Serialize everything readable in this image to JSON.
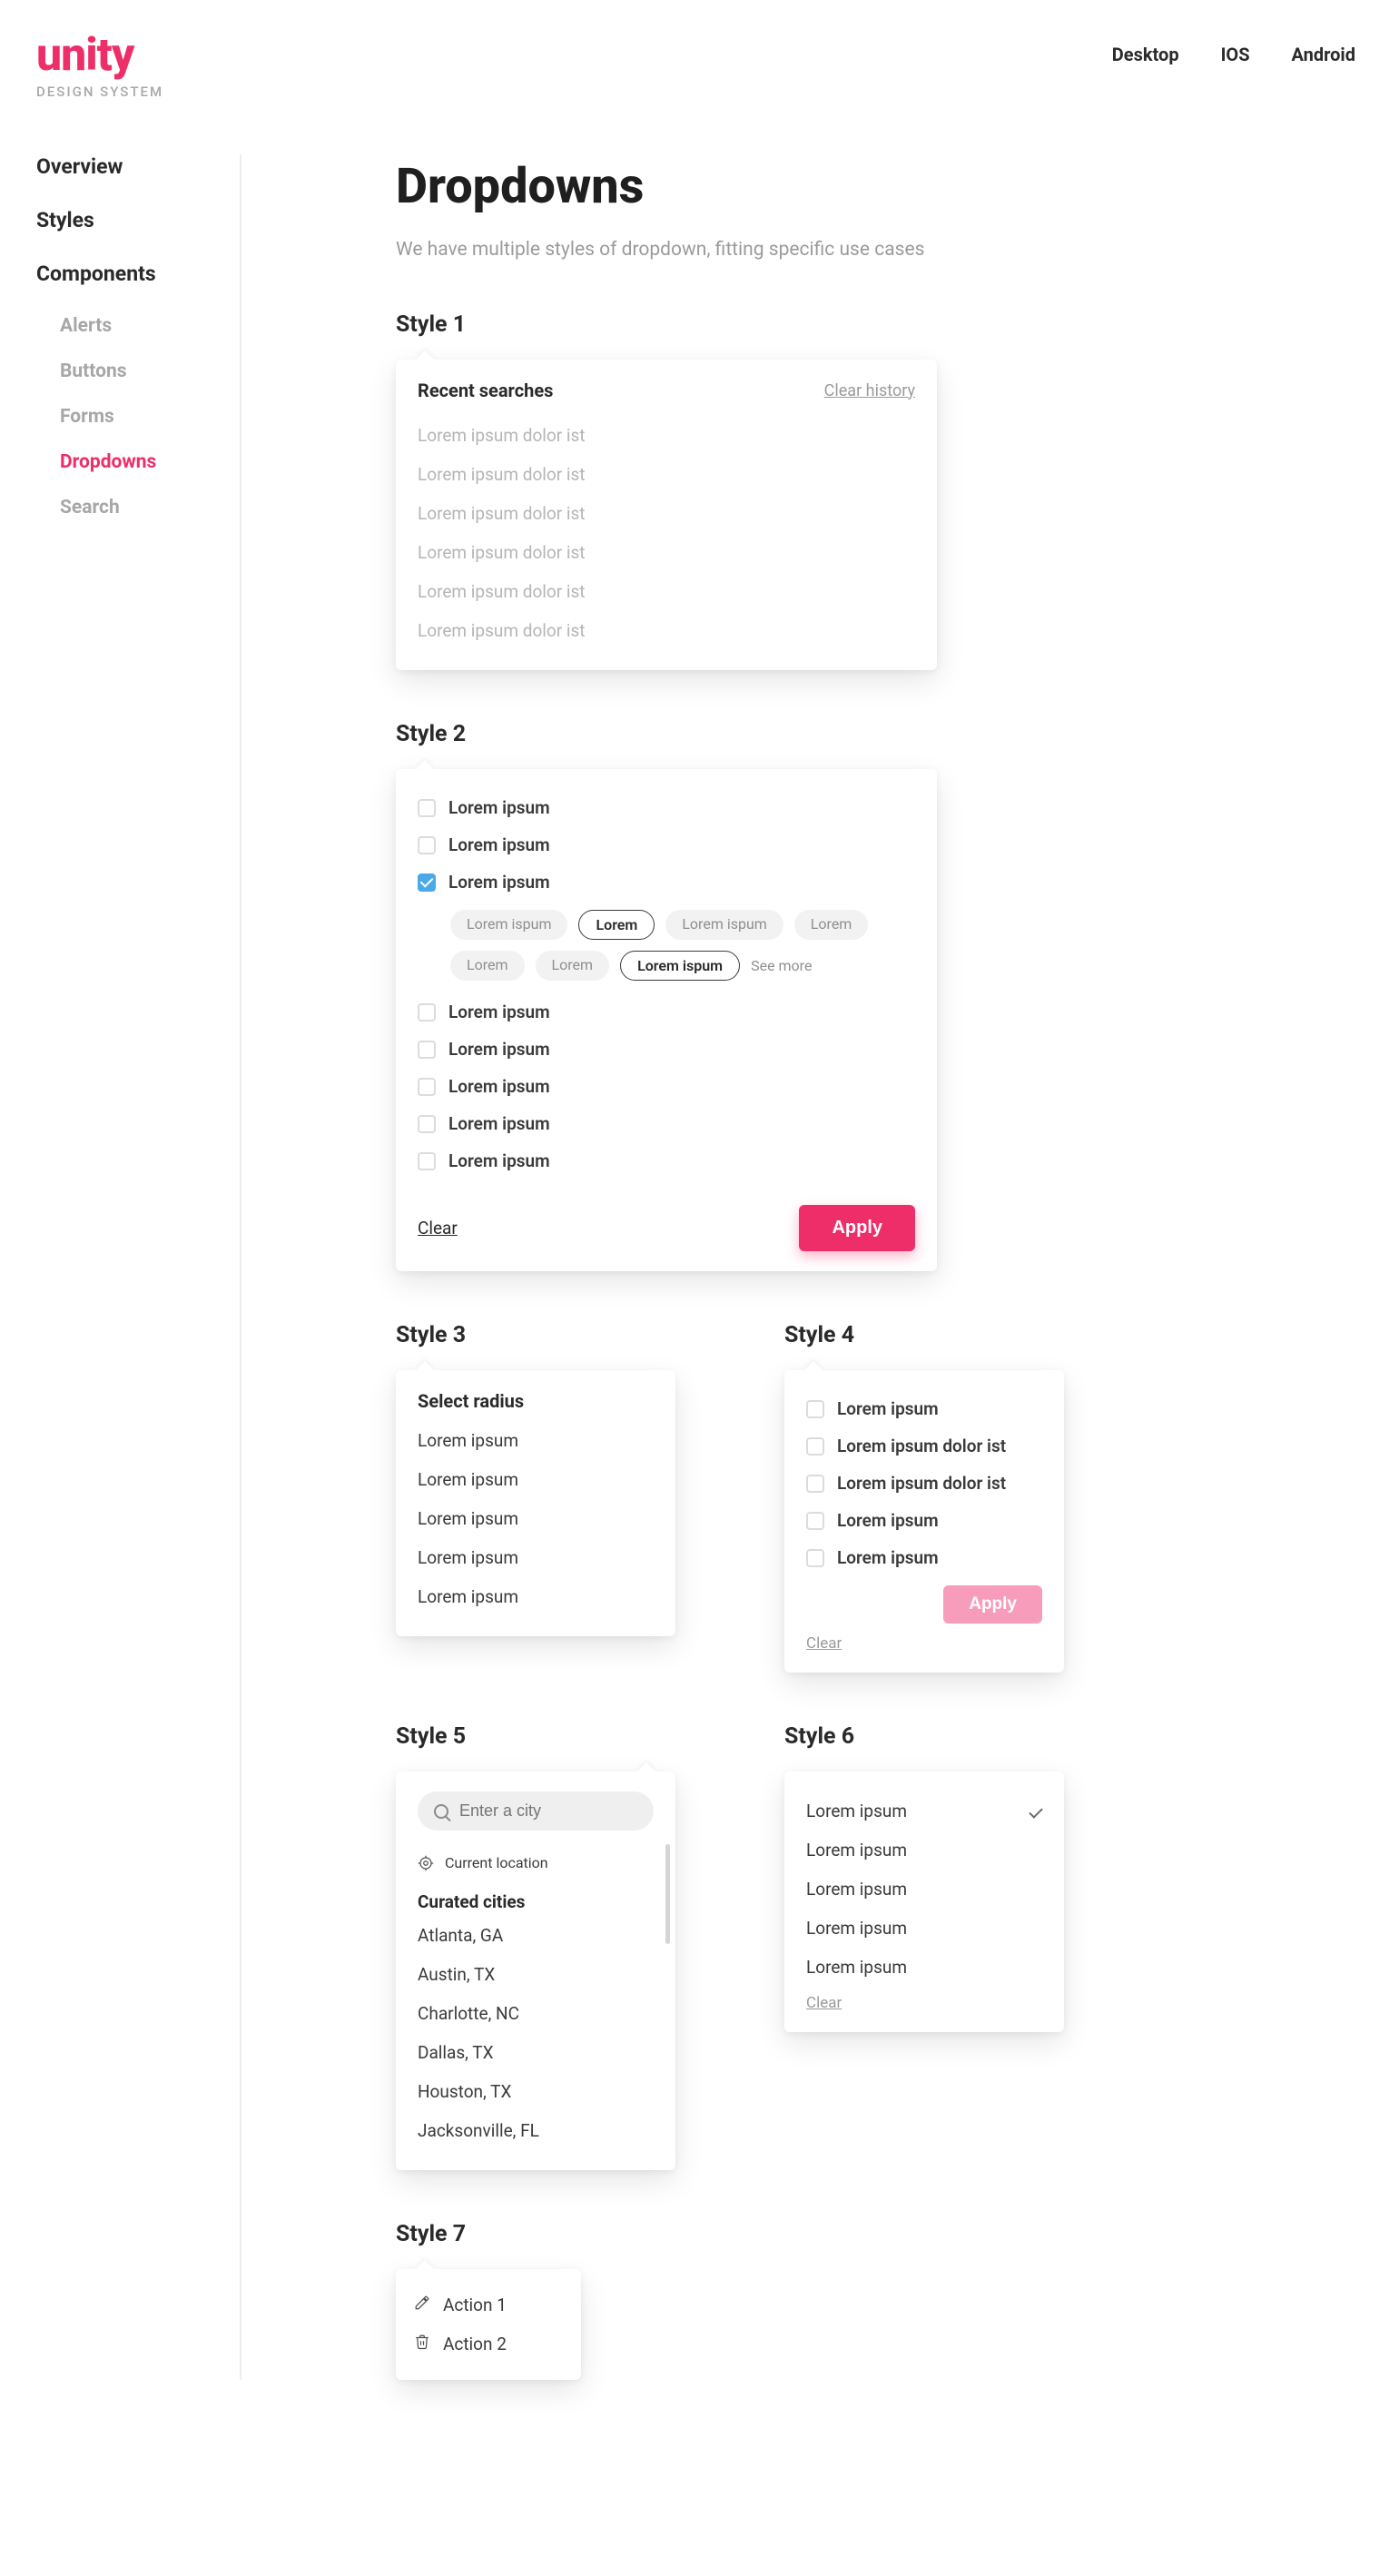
{
  "brand": {
    "name": "unity",
    "sub": "DESIGN SYSTEM"
  },
  "colors": {
    "accent": "#ed2e69",
    "accent_light": "#f79cba",
    "check_blue": "#4aa9e8",
    "text_muted": "#9b9b9b",
    "background": "#ffffff"
  },
  "tabs": {
    "items": [
      "Desktop",
      "IOS",
      "Android"
    ]
  },
  "sidebar": {
    "top": [
      "Overview",
      "Styles",
      "Components"
    ],
    "sub": [
      {
        "label": "Alerts",
        "active": false
      },
      {
        "label": "Buttons",
        "active": false
      },
      {
        "label": "Forms",
        "active": false
      },
      {
        "label": "Dropdowns",
        "active": true
      },
      {
        "label": "Search",
        "active": false
      }
    ]
  },
  "page": {
    "title": "Dropdowns",
    "subtitle": "We have multiple styles of dropdown, fitting specific use cases"
  },
  "style1": {
    "heading": "Style 1",
    "card_title": "Recent searches",
    "clear_label": "Clear history",
    "items": [
      "Lorem ipsum dolor ist",
      "Lorem ipsum dolor ist",
      "Lorem ipsum dolor ist",
      "Lorem ipsum dolor ist",
      "Lorem ipsum dolor ist",
      "Lorem ipsum dolor ist"
    ]
  },
  "style2": {
    "heading": "Style 2",
    "items": [
      {
        "label": "Lorem ipsum",
        "checked": false
      },
      {
        "label": "Lorem ipsum",
        "checked": false
      },
      {
        "label": "Lorem ipsum",
        "checked": true
      },
      {
        "label": "Lorem ipsum",
        "checked": false
      },
      {
        "label": "Lorem ipsum",
        "checked": false
      },
      {
        "label": "Lorem ipsum",
        "checked": false
      },
      {
        "label": "Lorem ipsum",
        "checked": false
      },
      {
        "label": "Lorem ipsum",
        "checked": false
      }
    ],
    "pills": [
      {
        "label": "Lorem ispum",
        "selected": false
      },
      {
        "label": "Lorem",
        "selected": true
      },
      {
        "label": "Lorem ispum",
        "selected": false
      },
      {
        "label": "Lorem",
        "selected": false
      },
      {
        "label": "Lorem",
        "selected": false
      },
      {
        "label": "Lorem",
        "selected": false
      },
      {
        "label": "Lorem ispum",
        "selected": true
      }
    ],
    "see_more": "See more",
    "clear_label": "Clear",
    "apply_label": "Apply"
  },
  "style3": {
    "heading": "Style 3",
    "card_title": "Select radius",
    "items": [
      "Lorem ipsum",
      "Lorem ipsum",
      "Lorem ipsum",
      "Lorem ipsum",
      "Lorem ipsum"
    ]
  },
  "style4": {
    "heading": "Style 4",
    "items": [
      "Lorem ipsum",
      "Lorem ipsum dolor ist",
      "Lorem ipsum dolor ist",
      "Lorem ipsum",
      "Lorem ipsum"
    ],
    "apply_label": "Apply",
    "clear_label": "Clear"
  },
  "style5": {
    "heading": "Style 5",
    "placeholder": "Enter a city",
    "current_label": "Current location",
    "sub_heading": "Curated cities",
    "cities": [
      "Atlanta, GA",
      "Austin, TX",
      "Charlotte, NC",
      "Dallas, TX",
      "Houston, TX",
      "Jacksonville, FL"
    ]
  },
  "style6": {
    "heading": "Style 6",
    "items": [
      "Lorem ipsum",
      "Lorem ipsum",
      "Lorem ipsum",
      "Lorem ipsum",
      "Lorem ipsum"
    ],
    "selected_index": 0,
    "clear_label": "Clear"
  },
  "style7": {
    "heading": "Style 7",
    "actions": [
      {
        "icon": "pencil-icon",
        "label": "Action 1"
      },
      {
        "icon": "trash-icon",
        "label": "Action 2"
      }
    ]
  }
}
